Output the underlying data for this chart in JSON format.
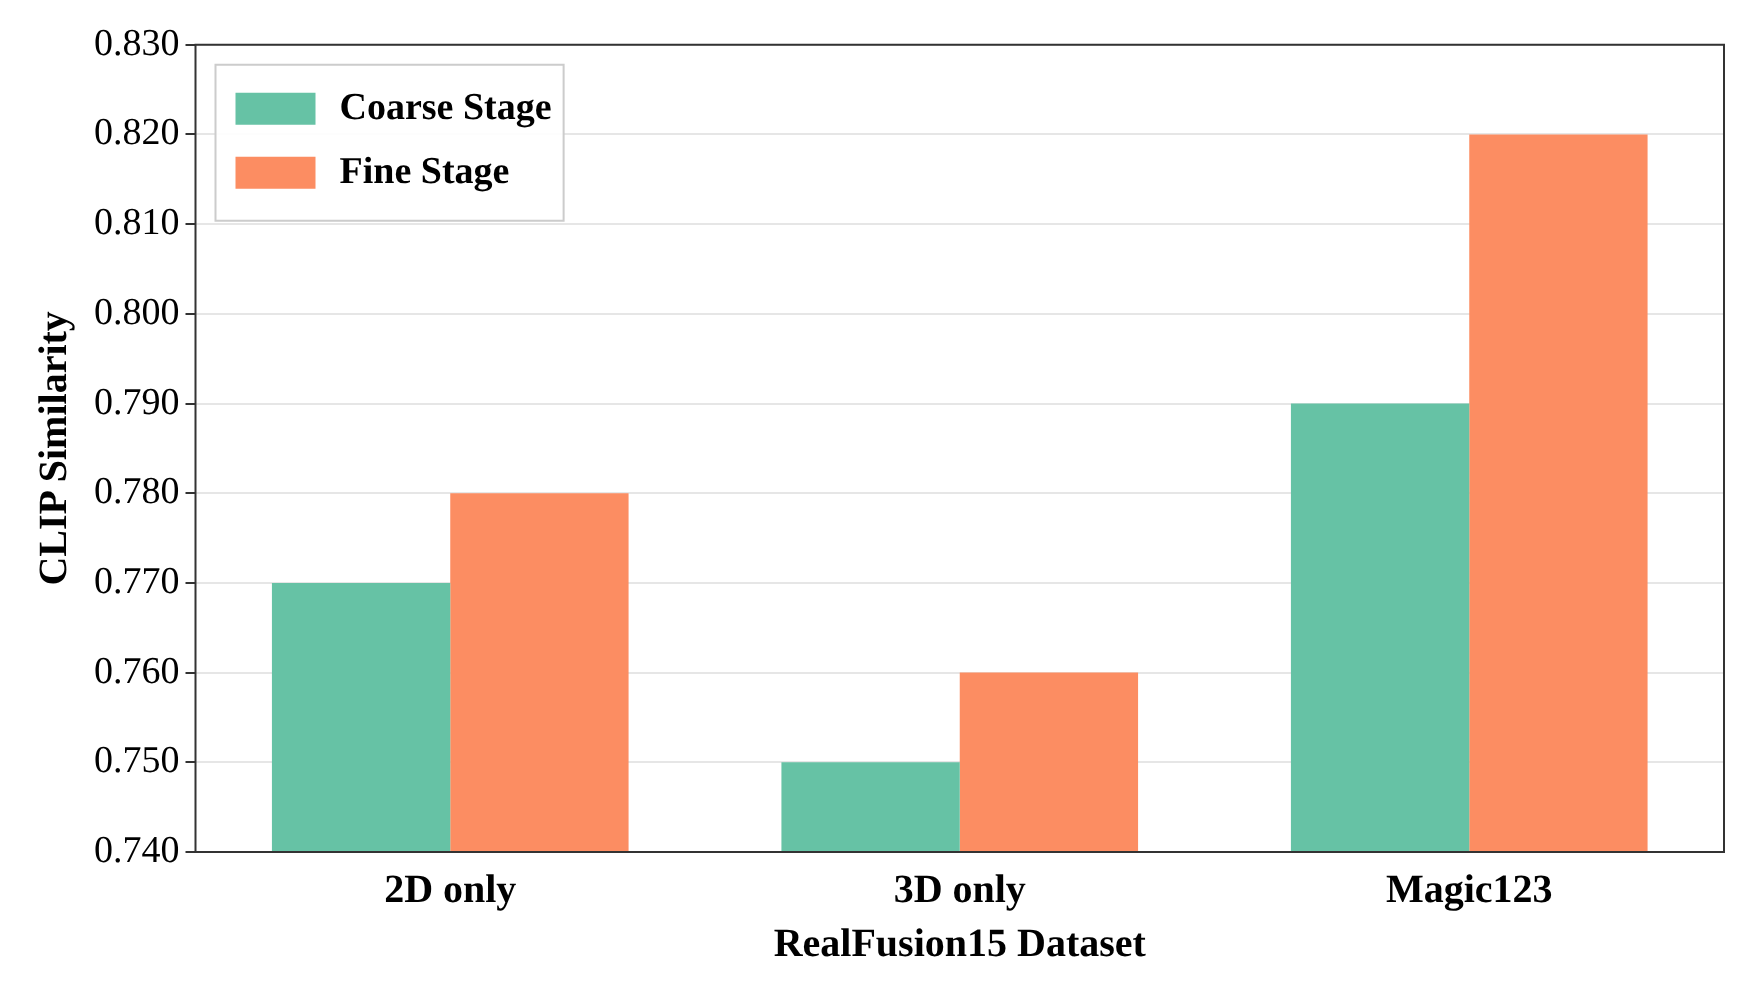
{
  "chart_data": {
    "type": "bar",
    "xlabel": "RealFusion15 Dataset",
    "ylabel": "CLIP Similarity",
    "categories": [
      "2D only",
      "3D only",
      "Magic123"
    ],
    "series": [
      {
        "name": "Coarse Stage",
        "color": "#66c2a5",
        "values": [
          0.77,
          0.75,
          0.79
        ]
      },
      {
        "name": "Fine Stage",
        "color": "#fc8d62",
        "values": [
          0.78,
          0.76,
          0.82
        ]
      }
    ],
    "ylim": [
      0.74,
      0.83
    ],
    "yticks": [
      {
        "value": 0.74,
        "label": "0.740"
      },
      {
        "value": 0.75,
        "label": "0.750"
      },
      {
        "value": 0.76,
        "label": "0.760"
      },
      {
        "value": 0.77,
        "label": "0.770"
      },
      {
        "value": 0.78,
        "label": "0.780"
      },
      {
        "value": 0.79,
        "label": "0.790"
      },
      {
        "value": 0.8,
        "label": "0.800"
      },
      {
        "value": 0.81,
        "label": "0.810"
      },
      {
        "value": 0.82,
        "label": "0.820"
      },
      {
        "value": 0.83,
        "label": "0.830"
      }
    ],
    "grid": "y",
    "legend": "top left"
  }
}
